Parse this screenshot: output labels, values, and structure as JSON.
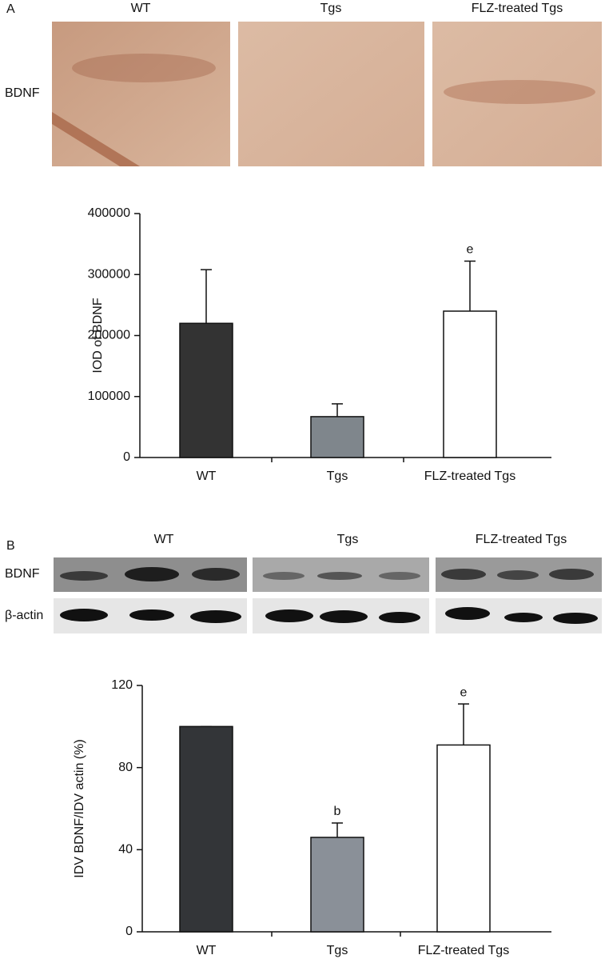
{
  "panel_a": {
    "label": "A",
    "image_titles": [
      "WT",
      "Tgs",
      "FLZ-treated Tgs"
    ],
    "row_label": "BDNF"
  },
  "panel_b": {
    "label": "B",
    "blot_titles": [
      "WT",
      "Tgs",
      "FLZ-treated Tgs"
    ],
    "row_labels": [
      "BDNF",
      "β-actin"
    ]
  },
  "chart_data": [
    {
      "type": "bar",
      "ylabel": "IOD of BDNF",
      "categories": [
        "WT",
        "Tgs",
        "FLZ-treated Tgs"
      ],
      "values": [
        220000,
        67000,
        240000
      ],
      "errors": [
        88000,
        21000,
        82000
      ],
      "value_annotations": [
        null,
        null,
        "e"
      ],
      "colors": [
        "#333333",
        "#7f868c",
        "#ffffff"
      ],
      "ylim": [
        0,
        400000
      ],
      "yticks": [
        0,
        100000,
        200000,
        300000,
        400000
      ]
    },
    {
      "type": "bar",
      "ylabel": "IDV BDNF/IDV actin (%)",
      "categories": [
        "WT",
        "Tgs",
        "FLZ-treated Tgs"
      ],
      "values": [
        100,
        46,
        91
      ],
      "errors": [
        0,
        7,
        20
      ],
      "value_annotations": [
        null,
        "b",
        "e"
      ],
      "colors": [
        "#333538",
        "#8a9098",
        "#ffffff"
      ],
      "ylim": [
        0,
        120
      ],
      "yticks": [
        0,
        40,
        80,
        120
      ]
    }
  ]
}
